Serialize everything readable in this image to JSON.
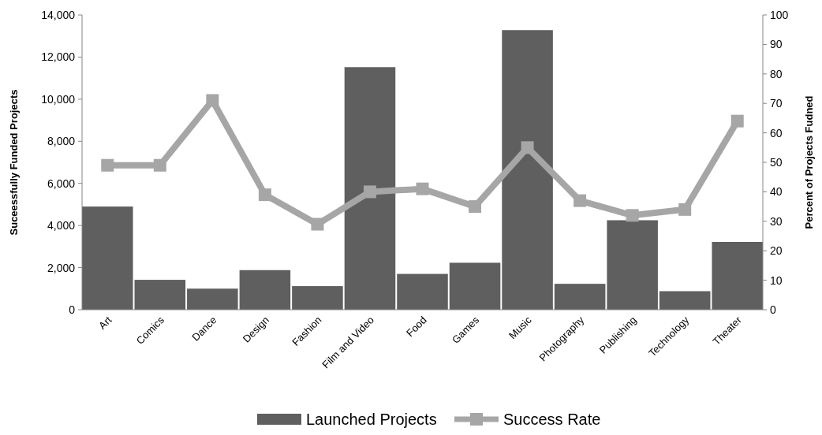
{
  "chart_data": {
    "type": "bar",
    "categories": [
      "Art",
      "Comics",
      "Dance",
      "Design",
      "Fashion",
      "Film and Video",
      "Food",
      "Games",
      "Music",
      "Photography",
      "Publishing",
      "Technology",
      "Theater"
    ],
    "series": [
      {
        "name": "Launched Projects",
        "color": "#5f5f5f",
        "values": [
          4900,
          1420,
          1000,
          1880,
          1120,
          11520,
          1700,
          2230,
          13280,
          1230,
          4250,
          880,
          3220
        ]
      },
      {
        "name": "Success Rate",
        "type": "line",
        "axis": "y2",
        "color": "#a6a6a6",
        "marker": "square",
        "values": [
          49,
          49,
          71,
          39,
          29,
          40,
          41,
          35,
          55,
          37,
          32,
          34,
          64
        ]
      }
    ],
    "ylabel": "Suceessfully Funded Projects",
    "y2label": "Percent of Projects Fudned",
    "ylim": [
      0,
      14000
    ],
    "yticks": [
      {
        "value": 0,
        "label": "0"
      },
      {
        "value": 2000,
        "label": "2,000"
      },
      {
        "value": 4000,
        "label": "4,000"
      },
      {
        "value": 6000,
        "label": "6,000"
      },
      {
        "value": 8000,
        "label": "8,000"
      },
      {
        "value": 10000,
        "label": "10,000"
      },
      {
        "value": 12000,
        "label": "12,000"
      },
      {
        "value": 14000,
        "label": "14,000"
      }
    ],
    "y2lim": [
      0,
      100
    ],
    "y2ticks": [
      0,
      10,
      20,
      30,
      40,
      50,
      60,
      70,
      80,
      90,
      100
    ],
    "legend": "bottom"
  }
}
